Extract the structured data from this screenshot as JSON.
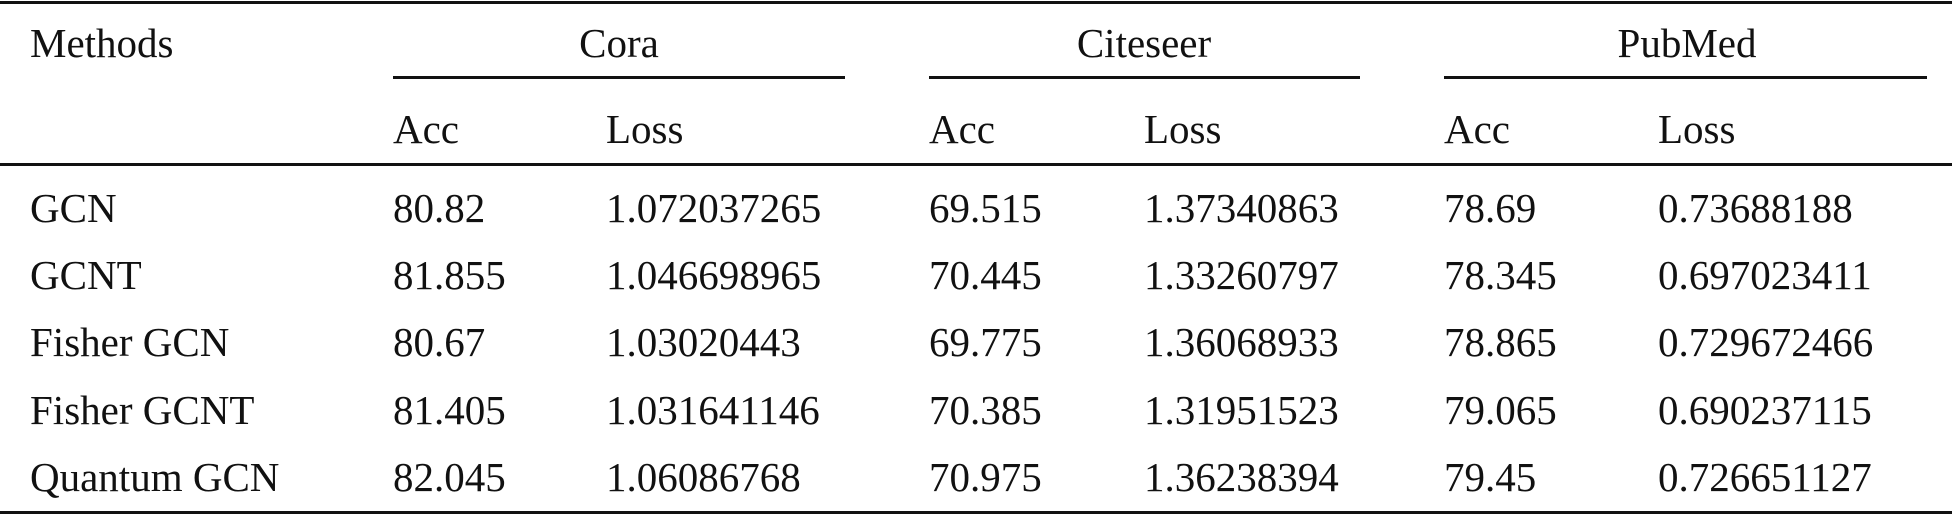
{
  "table": {
    "header": {
      "methods_label": "Methods",
      "datasets": [
        "Cora",
        "Citeseer",
        "PubMed"
      ],
      "sub_columns": [
        "Acc",
        "Loss"
      ]
    },
    "rows": [
      {
        "method": "GCN",
        "values": [
          "80.82",
          "1.072037265",
          "69.515",
          "1.37340863",
          "78.69",
          "0.73688188"
        ]
      },
      {
        "method": "GCNT",
        "values": [
          "81.855",
          "1.046698965",
          "70.445",
          "1.33260797",
          "78.345",
          "0.697023411"
        ]
      },
      {
        "method": "Fisher GCN",
        "values": [
          "80.67",
          "1.03020443",
          "69.775",
          "1.36068933",
          "78.865",
          "0.729672466"
        ]
      },
      {
        "method": "Fisher GCNT",
        "values": [
          "81.405",
          "1.031641146",
          "70.385",
          "1.31951523",
          "79.065",
          "0.690237115"
        ]
      },
      {
        "method": "Quantum GCN",
        "values": [
          "82.045",
          "1.06086768",
          "70.975",
          "1.36238394",
          "79.45",
          "0.726651127"
        ]
      }
    ]
  }
}
